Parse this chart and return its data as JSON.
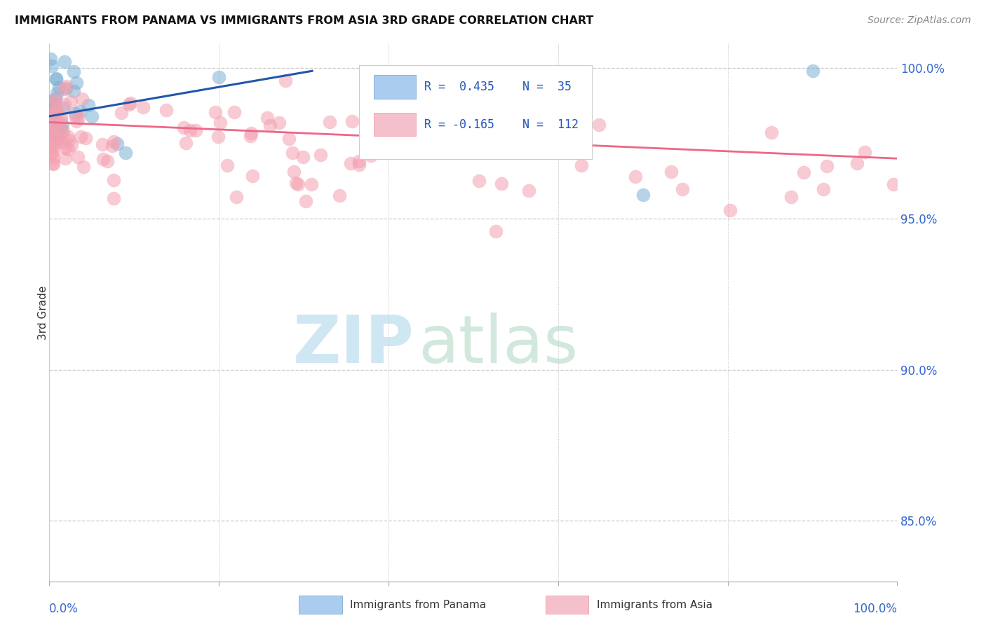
{
  "title": "IMMIGRANTS FROM PANAMA VS IMMIGRANTS FROM ASIA 3RD GRADE CORRELATION CHART",
  "source": "Source: ZipAtlas.com",
  "ylabel": "3rd Grade",
  "blue_color": "#7BAFD4",
  "pink_color": "#F4A0B0",
  "blue_line_color": "#2255AA",
  "pink_line_color": "#EE6688",
  "watermark_zip_color": "#BBDDEE",
  "watermark_atlas_color": "#BBDDCC",
  "legend_blue_r": "R =  0.435",
  "legend_blue_n": "N =  35",
  "legend_pink_r": "R = -0.165",
  "legend_pink_n": "N =  112",
  "xlim": [
    0.0,
    1.0
  ],
  "ylim": [
    0.83,
    1.008
  ],
  "yticks": [
    0.85,
    0.9,
    0.95,
    1.0
  ],
  "ytick_labels": [
    "85.0%",
    "90.0%",
    "95.0%",
    "100.0%"
  ],
  "blue_line_x0": 0.0,
  "blue_line_y0": 0.984,
  "blue_line_x1": 0.31,
  "blue_line_y1": 0.999,
  "pink_line_x0": 0.0,
  "pink_line_y0": 0.982,
  "pink_line_x1": 1.0,
  "pink_line_y1": 0.97
}
